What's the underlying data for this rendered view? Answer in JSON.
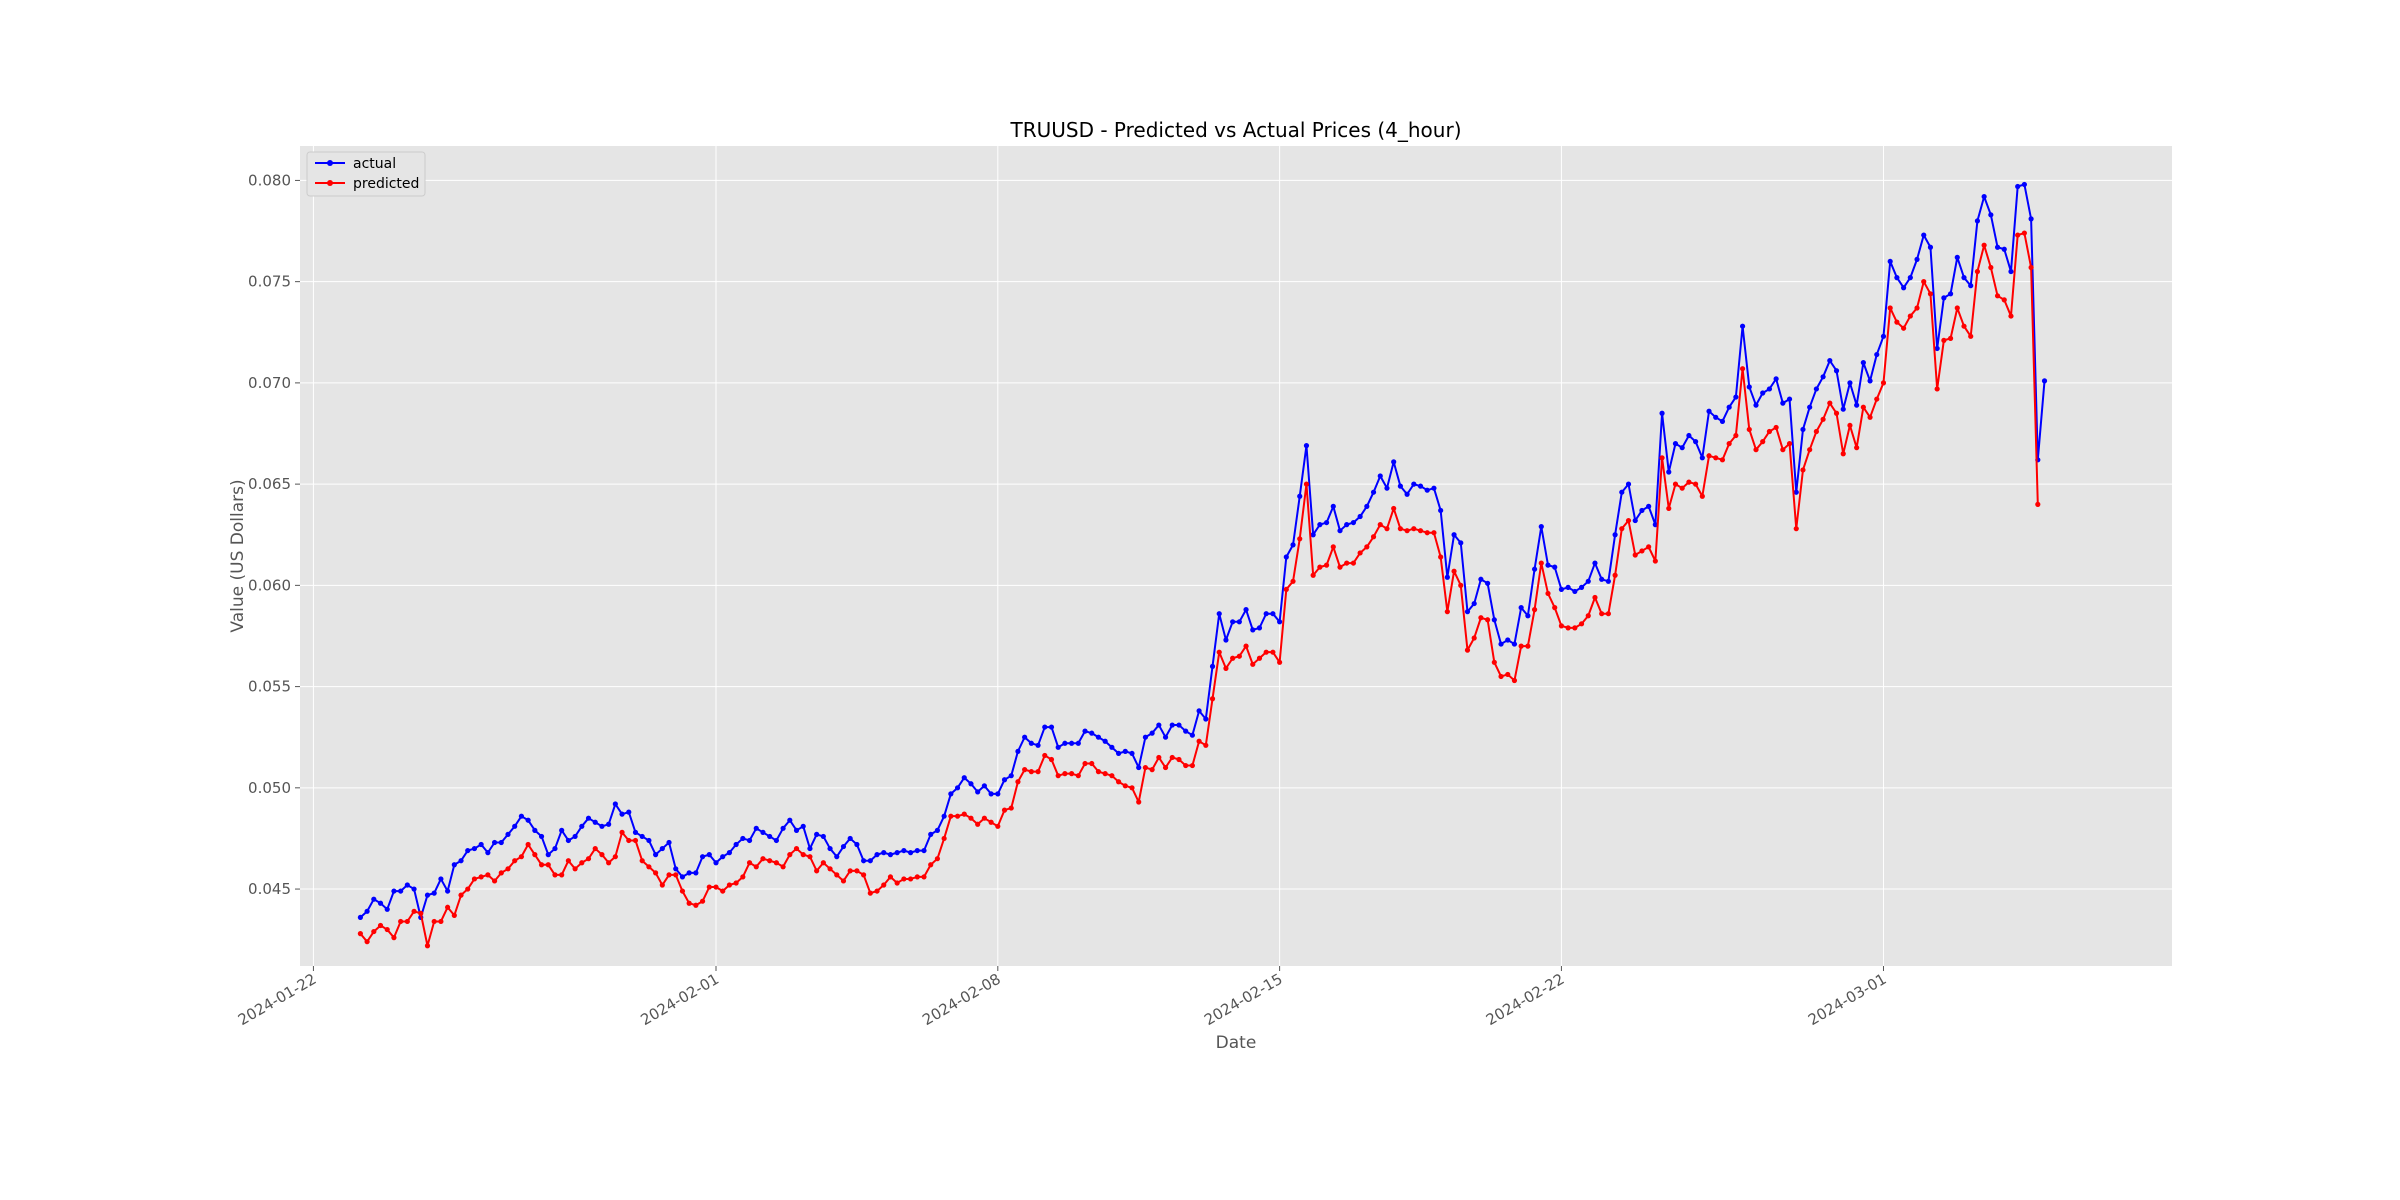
{
  "chart_data": {
    "type": "line",
    "title": "TRUUSD - Predicted vs Actual Prices (4_hour)",
    "xlabel": "Date",
    "ylabel": "Value (US Dollars)",
    "x_start": "2024-01-23T04:00",
    "x_interval_hours": 4,
    "xlim": [
      "2024-01-21T16:00",
      "2024-03-08T04:00"
    ],
    "ylim": [
      0.0412,
      0.0817
    ],
    "x_ticks": [
      "2024-01-22",
      "2024-02-01",
      "2024-02-08",
      "2024-02-15",
      "2024-02-22",
      "2024-03-01"
    ],
    "y_ticks": [
      0.045,
      0.05,
      0.055,
      0.06,
      0.065,
      0.07,
      0.075,
      0.08
    ],
    "y_tick_labels": [
      "0.045",
      "0.050",
      "0.055",
      "0.060",
      "0.065",
      "0.070",
      "0.075",
      "0.080"
    ],
    "grid": true,
    "legend_position": "top-left",
    "series": [
      {
        "name": "actual",
        "color": "#0000ff",
        "values": [
          0.0436,
          0.0439,
          0.0445,
          0.0443,
          0.044,
          0.0449,
          0.0449,
          0.0452,
          0.045,
          0.0436,
          0.0447,
          0.0448,
          0.0455,
          0.0449,
          0.0462,
          0.0464,
          0.0469,
          0.047,
          0.0472,
          0.0468,
          0.0473,
          0.0473,
          0.0477,
          0.0481,
          0.0486,
          0.0484,
          0.0479,
          0.0476,
          0.0467,
          0.047,
          0.0479,
          0.0474,
          0.0476,
          0.0481,
          0.0485,
          0.0483,
          0.0481,
          0.0482,
          0.0492,
          0.0487,
          0.0488,
          0.0478,
          0.0476,
          0.0474,
          0.0467,
          0.047,
          0.0473,
          0.046,
          0.0456,
          0.0458,
          0.0458,
          0.0466,
          0.0467,
          0.0463,
          0.0466,
          0.0468,
          0.0472,
          0.0475,
          0.0474,
          0.048,
          0.0478,
          0.0476,
          0.0474,
          0.048,
          0.0484,
          0.0479,
          0.0481,
          0.047,
          0.0477,
          0.0476,
          0.047,
          0.0466,
          0.0471,
          0.0475,
          0.0472,
          0.0464,
          0.0464,
          0.0467,
          0.0468,
          0.0467,
          0.0468,
          0.0469,
          0.0468,
          0.0469,
          0.0469,
          0.0477,
          0.0479,
          0.0486,
          0.0497,
          0.05,
          0.0505,
          0.0502,
          0.0498,
          0.0501,
          0.0497,
          0.0497,
          0.0504,
          0.0506,
          0.0518,
          0.0525,
          0.0522,
          0.0521,
          0.053,
          0.053,
          0.052,
          0.0522,
          0.0522,
          0.0522,
          0.0528,
          0.0527,
          0.0525,
          0.0523,
          0.052,
          0.0517,
          0.0518,
          0.0517,
          0.051,
          0.0525,
          0.0527,
          0.0531,
          0.0525,
          0.0531,
          0.0531,
          0.0528,
          0.0526,
          0.0538,
          0.0534,
          0.056,
          0.0586,
          0.0573,
          0.0582,
          0.0582,
          0.0588,
          0.0578,
          0.0579,
          0.0586,
          0.0586,
          0.0582,
          0.0614,
          0.062,
          0.0644,
          0.0669,
          0.0625,
          0.063,
          0.0631,
          0.0639,
          0.0627,
          0.063,
          0.0631,
          0.0634,
          0.0639,
          0.0646,
          0.0654,
          0.0648,
          0.0661,
          0.0649,
          0.0645,
          0.065,
          0.0649,
          0.0647,
          0.0648,
          0.0637,
          0.0604,
          0.0625,
          0.0621,
          0.0587,
          0.0591,
          0.0603,
          0.0601,
          0.0583,
          0.0571,
          0.0573,
          0.0571,
          0.0589,
          0.0585,
          0.0608,
          0.0629,
          0.061,
          0.0609,
          0.0598,
          0.0599,
          0.0597,
          0.0599,
          0.0602,
          0.0611,
          0.0603,
          0.0602,
          0.0625,
          0.0646,
          0.065,
          0.0632,
          0.0637,
          0.0639,
          0.063,
          0.0685,
          0.0656,
          0.067,
          0.0668,
          0.0674,
          0.0671,
          0.0663,
          0.0686,
          0.0683,
          0.0681,
          0.0688,
          0.0693,
          0.0728,
          0.0698,
          0.0689,
          0.0695,
          0.0697,
          0.0702,
          0.069,
          0.0692,
          0.0646,
          0.0677,
          0.0688,
          0.0697,
          0.0703,
          0.0711,
          0.0706,
          0.0687,
          0.07,
          0.0689,
          0.071,
          0.0701,
          0.0714,
          0.0723,
          0.076,
          0.0752,
          0.0747,
          0.0752,
          0.0761,
          0.0773,
          0.0767,
          0.0717,
          0.0742,
          0.0744,
          0.0762,
          0.0752,
          0.0748,
          0.078,
          0.0792,
          0.0783,
          0.0767,
          0.0766,
          0.0755,
          0.0797,
          0.0798,
          0.0781,
          0.0662,
          0.0701
        ]
      },
      {
        "name": "predicted",
        "color": "#ff0000",
        "values": [
          0.0428,
          0.0424,
          0.0429,
          0.0432,
          0.043,
          0.0426,
          0.0434,
          0.0434,
          0.0439,
          0.0438,
          0.0422,
          0.0434,
          0.0434,
          0.0441,
          0.0437,
          0.0447,
          0.045,
          0.0455,
          0.0456,
          0.0457,
          0.0454,
          0.0458,
          0.046,
          0.0464,
          0.0466,
          0.0472,
          0.0467,
          0.0462,
          0.0462,
          0.0457,
          0.0457,
          0.0464,
          0.046,
          0.0463,
          0.0465,
          0.047,
          0.0467,
          0.0463,
          0.0466,
          0.0478,
          0.0474,
          0.0474,
          0.0464,
          0.0461,
          0.0458,
          0.0452,
          0.0457,
          0.0457,
          0.0449,
          0.0443,
          0.0442,
          0.0444,
          0.0451,
          0.0451,
          0.0449,
          0.0452,
          0.0453,
          0.0456,
          0.0463,
          0.0461,
          0.0465,
          0.0464,
          0.0463,
          0.0461,
          0.0467,
          0.047,
          0.0467,
          0.0466,
          0.0459,
          0.0463,
          0.046,
          0.0457,
          0.0454,
          0.0459,
          0.0459,
          0.0457,
          0.0448,
          0.0449,
          0.0452,
          0.0456,
          0.0453,
          0.0455,
          0.0455,
          0.0456,
          0.0456,
          0.0462,
          0.0465,
          0.0475,
          0.0486,
          0.0486,
          0.0487,
          0.0485,
          0.0482,
          0.0485,
          0.0483,
          0.0481,
          0.0489,
          0.049,
          0.0503,
          0.0509,
          0.0508,
          0.0508,
          0.0516,
          0.0514,
          0.0506,
          0.0507,
          0.0507,
          0.0506,
          0.0512,
          0.0512,
          0.0508,
          0.0507,
          0.0506,
          0.0503,
          0.0501,
          0.05,
          0.0493,
          0.051,
          0.0509,
          0.0515,
          0.051,
          0.0515,
          0.0514,
          0.0511,
          0.0511,
          0.0523,
          0.0521,
          0.0544,
          0.0567,
          0.0559,
          0.0564,
          0.0565,
          0.057,
          0.0561,
          0.0564,
          0.0567,
          0.0567,
          0.0562,
          0.0598,
          0.0602,
          0.0623,
          0.065,
          0.0605,
          0.0609,
          0.061,
          0.0619,
          0.0609,
          0.0611,
          0.0611,
          0.0616,
          0.0619,
          0.0624,
          0.063,
          0.0628,
          0.0638,
          0.0628,
          0.0627,
          0.0628,
          0.0627,
          0.0626,
          0.0626,
          0.0614,
          0.0587,
          0.0607,
          0.06,
          0.0568,
          0.0574,
          0.0584,
          0.0583,
          0.0562,
          0.0555,
          0.0556,
          0.0553,
          0.057,
          0.057,
          0.0588,
          0.0611,
          0.0596,
          0.0589,
          0.058,
          0.0579,
          0.0579,
          0.0581,
          0.0585,
          0.0594,
          0.0586,
          0.0586,
          0.0605,
          0.0628,
          0.0632,
          0.0615,
          0.0617,
          0.0619,
          0.0612,
          0.0663,
          0.0638,
          0.065,
          0.0648,
          0.0651,
          0.065,
          0.0644,
          0.0664,
          0.0663,
          0.0662,
          0.067,
          0.0674,
          0.0707,
          0.0677,
          0.0667,
          0.0671,
          0.0676,
          0.0678,
          0.0667,
          0.067,
          0.0628,
          0.0657,
          0.0667,
          0.0676,
          0.0682,
          0.069,
          0.0685,
          0.0665,
          0.0679,
          0.0668,
          0.0688,
          0.0683,
          0.0692,
          0.07,
          0.0737,
          0.073,
          0.0727,
          0.0733,
          0.0737,
          0.075,
          0.0744,
          0.0697,
          0.0721,
          0.0722,
          0.0737,
          0.0728,
          0.0723,
          0.0755,
          0.0768,
          0.0757,
          0.0743,
          0.0741,
          0.0733,
          0.0773,
          0.0774,
          0.0757,
          0.064
        ]
      }
    ]
  }
}
